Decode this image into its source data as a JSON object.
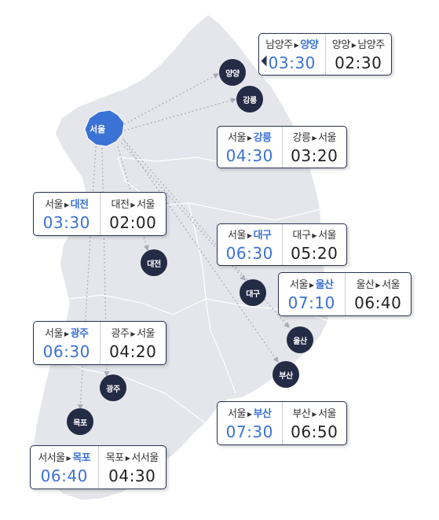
{
  "origin": {
    "label": "서울",
    "color": "#3a72d6"
  },
  "marker_color": "#232b45",
  "highlight_color": "#3a72d6",
  "cities": {
    "yangyang": "양양",
    "gangneung": "강릉",
    "daejeon": "대전",
    "daegu": "대구",
    "ulsan": "울산",
    "gwangju": "광주",
    "busan": "부산",
    "mokpo": "목포"
  },
  "cards": [
    {
      "id": "yangyang",
      "out_from": "남양주",
      "out_to": "양양",
      "out_time": "03:30",
      "in_from": "양양",
      "in_to": "남양주",
      "in_time": "02:30"
    },
    {
      "id": "gangneung",
      "out_from": "서울",
      "out_to": "강릉",
      "out_time": "04:30",
      "in_from": "강릉",
      "in_to": "서울",
      "in_time": "03:20"
    },
    {
      "id": "daejeon",
      "out_from": "서울",
      "out_to": "대전",
      "out_time": "03:30",
      "in_from": "대전",
      "in_to": "서울",
      "in_time": "02:00"
    },
    {
      "id": "daegu",
      "out_from": "서울",
      "out_to": "대구",
      "out_time": "06:30",
      "in_from": "대구",
      "in_to": "서울",
      "in_time": "05:20"
    },
    {
      "id": "ulsan",
      "out_from": "서울",
      "out_to": "울산",
      "out_time": "07:10",
      "in_from": "울산",
      "in_to": "서울",
      "in_time": "06:40"
    },
    {
      "id": "gwangju",
      "out_from": "서울",
      "out_to": "광주",
      "out_time": "06:30",
      "in_from": "광주",
      "in_to": "서울",
      "in_time": "04:20"
    },
    {
      "id": "busan",
      "out_from": "서울",
      "out_to": "부산",
      "out_time": "07:30",
      "in_from": "부산",
      "in_to": "서울",
      "in_time": "06:50"
    },
    {
      "id": "mokpo",
      "out_from": "서서울",
      "out_to": "목포",
      "out_time": "06:40",
      "in_from": "목포",
      "in_to": "서서울",
      "in_time": "04:30"
    }
  ]
}
